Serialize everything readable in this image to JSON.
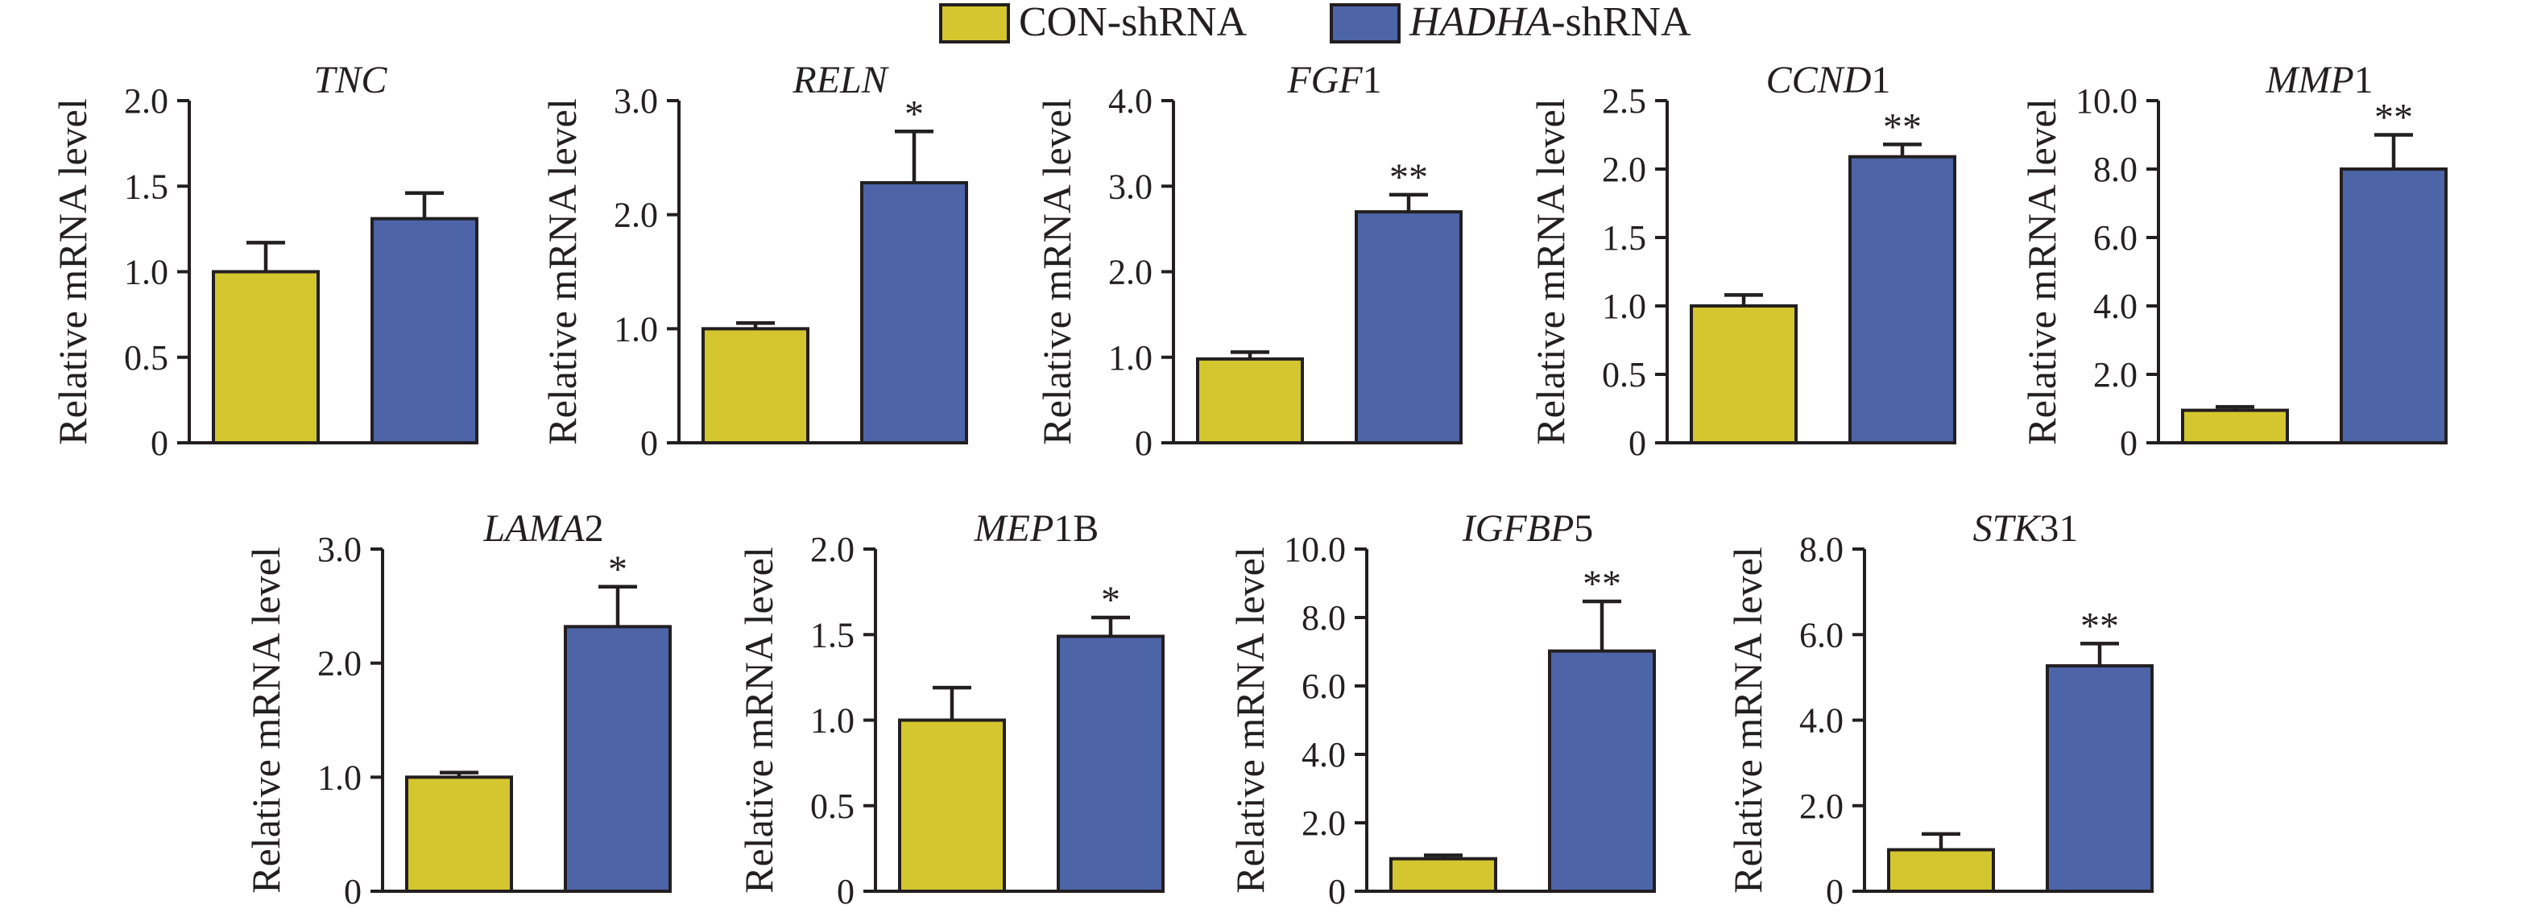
{
  "legend": [
    {
      "name_italic": "",
      "name_plain": "CON-shRNA",
      "color": "#d4c62e"
    },
    {
      "name_italic": "HADHA",
      "name_plain": "-shRNA",
      "color": "#4d64a8"
    }
  ],
  "chart_data": [
    {
      "type": "bar",
      "title_italic": "TNC",
      "title_plain": "",
      "ylabel": "Relative mRNA level",
      "ylim": [
        0,
        2.0
      ],
      "yticks": [
        "0",
        "0.5",
        "1.0",
        "1.5",
        "2.0"
      ],
      "categories": [
        "CON-shRNA",
        "HADHA-shRNA"
      ],
      "values": [
        1.0,
        1.31
      ],
      "errors": [
        0.17,
        0.15
      ],
      "significance": [
        "",
        ""
      ]
    },
    {
      "type": "bar",
      "title_italic": "RELN",
      "title_plain": "",
      "ylabel": "Relative mRNA level",
      "ylim": [
        0,
        3.0
      ],
      "yticks": [
        "0",
        "1.0",
        "2.0",
        "3.0"
      ],
      "categories": [
        "CON-shRNA",
        "HADHA-shRNA"
      ],
      "values": [
        1.0,
        2.28
      ],
      "errors": [
        0.05,
        0.45
      ],
      "significance": [
        "",
        "*"
      ]
    },
    {
      "type": "bar",
      "title_italic": "FGF",
      "title_plain": "1",
      "ylabel": "Relative mRNA level",
      "ylim": [
        0,
        4.0
      ],
      "yticks": [
        "0",
        "1.0",
        "2.0",
        "3.0",
        "4.0"
      ],
      "categories": [
        "CON-shRNA",
        "HADHA-shRNA"
      ],
      "values": [
        0.98,
        2.7
      ],
      "errors": [
        0.08,
        0.2
      ],
      "significance": [
        "",
        "**"
      ]
    },
    {
      "type": "bar",
      "title_italic": "CCND",
      "title_plain": "1",
      "ylabel": "Relative mRNA level",
      "ylim": [
        0,
        2.5
      ],
      "yticks": [
        "0",
        "0.5",
        "1.0",
        "1.5",
        "2.0",
        "2.5"
      ],
      "categories": [
        "CON-shRNA",
        "HADHA-shRNA"
      ],
      "values": [
        1.0,
        2.09
      ],
      "errors": [
        0.08,
        0.09
      ],
      "significance": [
        "",
        "**"
      ]
    },
    {
      "type": "bar",
      "title_italic": "MMP",
      "title_plain": "1",
      "ylabel": "Relative mRNA level",
      "ylim": [
        0,
        10.0
      ],
      "yticks": [
        "0",
        "2.0",
        "4.0",
        "6.0",
        "8.0",
        "10.0"
      ],
      "categories": [
        "CON-shRNA",
        "HADHA-shRNA"
      ],
      "values": [
        0.95,
        8.0
      ],
      "errors": [
        0.1,
        1.0
      ],
      "significance": [
        "",
        "**"
      ]
    },
    {
      "type": "bar",
      "title_italic": "LAMA",
      "title_plain": "2",
      "ylabel": "Relative mRNA level",
      "ylim": [
        0,
        3.0
      ],
      "yticks": [
        "0",
        "1.0",
        "2.0",
        "3.0"
      ],
      "categories": [
        "CON-shRNA",
        "HADHA-shRNA"
      ],
      "values": [
        1.0,
        2.32
      ],
      "errors": [
        0.04,
        0.35
      ],
      "significance": [
        "",
        "*"
      ]
    },
    {
      "type": "bar",
      "title_italic": "MEP",
      "title_plain": "1B",
      "ylabel": "Relative mRNA level",
      "ylim": [
        0,
        2.0
      ],
      "yticks": [
        "0",
        "0.5",
        "1.0",
        "1.5",
        "2.0"
      ],
      "categories": [
        "CON-shRNA",
        "HADHA-shRNA"
      ],
      "values": [
        1.0,
        1.49
      ],
      "errors": [
        0.19,
        0.11
      ],
      "significance": [
        "",
        "*"
      ]
    },
    {
      "type": "bar",
      "title_italic": "IGFBP",
      "title_plain": "5",
      "ylabel": "Relative mRNA level",
      "ylim": [
        0,
        10.0
      ],
      "yticks": [
        "0",
        "2.0",
        "4.0",
        "6.0",
        "8.0",
        "10.0"
      ],
      "categories": [
        "CON-shRNA",
        "HADHA-shRNA"
      ],
      "values": [
        0.95,
        7.02
      ],
      "errors": [
        0.1,
        1.45
      ],
      "significance": [
        "",
        "**"
      ]
    },
    {
      "type": "bar",
      "title_italic": "STK",
      "title_plain": "31",
      "ylabel": "Relative mRNA level",
      "ylim": [
        0,
        8.0
      ],
      "yticks": [
        "0",
        "2.0",
        "4.0",
        "6.0",
        "8.0"
      ],
      "categories": [
        "CON-shRNA",
        "HADHA-shRNA"
      ],
      "values": [
        0.97,
        5.27
      ],
      "errors": [
        0.37,
        0.52
      ],
      "significance": [
        "",
        "**"
      ]
    }
  ]
}
